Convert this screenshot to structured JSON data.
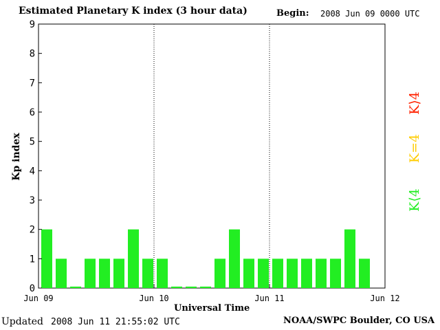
{
  "header": {
    "title": "Estimated Planetary K index (3 hour data)",
    "begin_label": "Begin:",
    "begin_value": "2008 Jun 09 0000 UTC"
  },
  "footer": {
    "updated_label": "Updated",
    "updated_value": "2008 Jun 11 21:55:02 UTC",
    "source": "NOAA/SWPC Boulder, CO USA"
  },
  "legend": {
    "low": {
      "label": "K⟨4",
      "color": "#22ee22"
    },
    "mid": {
      "label": "K=4",
      "color": "#ffcc00"
    },
    "high": {
      "label": "K⟩4",
      "color": "#ff2200"
    }
  },
  "chart_data": {
    "type": "bar",
    "title": "Estimated Planetary K index (3 hour data)",
    "xlabel": "Universal Time",
    "ylabel": "Kp index",
    "ylim": [
      0,
      9
    ],
    "yticks": [
      "0",
      "1",
      "2",
      "3",
      "4",
      "5",
      "6",
      "7",
      "8",
      "9"
    ],
    "xtick_labels": [
      "Jun 09",
      "Jun 10",
      "Jun 11",
      "Jun 12"
    ],
    "day_dividers": [
      "Jun 10",
      "Jun 11"
    ],
    "bar_color": "#22ee22",
    "interval_hours": 3,
    "values": [
      2,
      1,
      0.05,
      1,
      1,
      1,
      2,
      1,
      1,
      0.05,
      0.05,
      0.05,
      1,
      2,
      1,
      1,
      1,
      1,
      1,
      1,
      1,
      2,
      1
    ]
  }
}
